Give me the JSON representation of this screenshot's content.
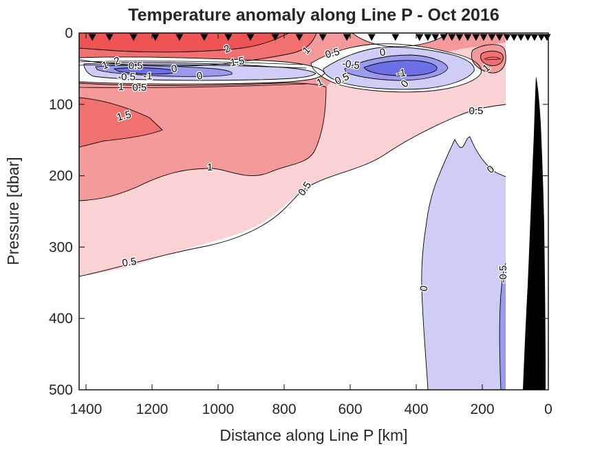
{
  "chart_data": {
    "type": "filled_contour",
    "title": "Temperature anomaly along Line P - Oct 2016",
    "xlabel": "Distance along Line P [km]",
    "ylabel": "Pressure [dbar]",
    "x_axis": {
      "ticks": [
        1400,
        1200,
        1000,
        800,
        600,
        400,
        200,
        0
      ],
      "units": "km",
      "reversed": true
    },
    "y_axis": {
      "ticks": [
        0,
        100,
        200,
        300,
        400,
        500
      ],
      "units": "dbar",
      "increases_downward": true
    },
    "contour_levels": [
      -1,
      -0.5,
      0,
      0.5,
      1,
      1.5,
      2
    ],
    "band_colors": {
      "gt_2": "#EF5454",
      "1.5_to_2": "#F17070",
      "1_to_1.5": "#F59A9A",
      "0.5_to_1": "#FAD2D4",
      "0_to_0.5": "#FFFFFF",
      "-0.5_to_0": "#CDCDF6",
      "-1_to_-0.5": "#9B9BEE",
      "lt_-1": "#6E6EE6"
    },
    "land_mask_color": "#000000",
    "station_markers_km": [
      1381,
      1329,
      1256,
      1190,
      1117,
      1042,
      969,
      902,
      827,
      754,
      683,
      610,
      535,
      463,
      390,
      365,
      342,
      317,
      292,
      269,
      244,
      219,
      196,
      171,
      148,
      125,
      104,
      83,
      62,
      42,
      21,
      4
    ],
    "contour_labels": [
      {
        "level": "1",
        "km": 1342,
        "dbar": 45,
        "rot": -20
      },
      {
        "level": "2",
        "km": 1306,
        "dbar": 39,
        "rot": -20
      },
      {
        "level": "0.5",
        "km": 1250,
        "dbar": 46,
        "rot": 0
      },
      {
        "level": "-0.5",
        "km": 1277,
        "dbar": 61,
        "rot": 0
      },
      {
        "level": "-1",
        "km": 1213,
        "dbar": 60,
        "rot": 0
      },
      {
        "level": "1",
        "km": 1294,
        "dbar": 75,
        "rot": 0
      },
      {
        "level": "0.5",
        "km": 1238,
        "dbar": 76,
        "rot": 0
      },
      {
        "level": "0",
        "km": 1133,
        "dbar": 50,
        "rot": -10
      },
      {
        "level": "0",
        "km": 1056,
        "dbar": 60,
        "rot": -10
      },
      {
        "level": "2",
        "km": 973,
        "dbar": 22,
        "rot": -25
      },
      {
        "level": "1.5",
        "km": 942,
        "dbar": 40,
        "rot": -10
      },
      {
        "level": "1",
        "km": 733,
        "dbar": 24,
        "rot": -48
      },
      {
        "level": "0.5",
        "km": 654,
        "dbar": 28,
        "rot": -15
      },
      {
        "level": "0",
        "km": 502,
        "dbar": 27,
        "rot": -10
      },
      {
        "level": "-0.5",
        "km": 598,
        "dbar": 44,
        "rot": 8
      },
      {
        "level": "-1",
        "km": 446,
        "dbar": 56,
        "rot": -8
      },
      {
        "level": "1",
        "km": 692,
        "dbar": 69,
        "rot": -25
      },
      {
        "level": "0.5",
        "km": 625,
        "dbar": 64,
        "rot": -25
      },
      {
        "level": "0",
        "km": 435,
        "dbar": 71,
        "rot": -50
      },
      {
        "level": "1",
        "km": 188,
        "dbar": 49,
        "rot": -40
      },
      {
        "level": "0.5",
        "km": 219,
        "dbar": 109,
        "rot": 0
      },
      {
        "level": "0",
        "km": 175,
        "dbar": 191,
        "rot": -40
      },
      {
        "level": "1.5",
        "km": 1285,
        "dbar": 116,
        "rot": -15
      },
      {
        "level": "1",
        "km": 1025,
        "dbar": 188,
        "rot": 0
      },
      {
        "level": "0.5",
        "km": 738,
        "dbar": 218,
        "rot": -55
      },
      {
        "level": "0.5",
        "km": 1269,
        "dbar": 321,
        "rot": -8
      },
      {
        "level": "0",
        "km": 377,
        "dbar": 358,
        "rot": -82
      },
      {
        "level": "-0.5",
        "km": 138,
        "dbar": 338,
        "rot": -90
      }
    ]
  }
}
